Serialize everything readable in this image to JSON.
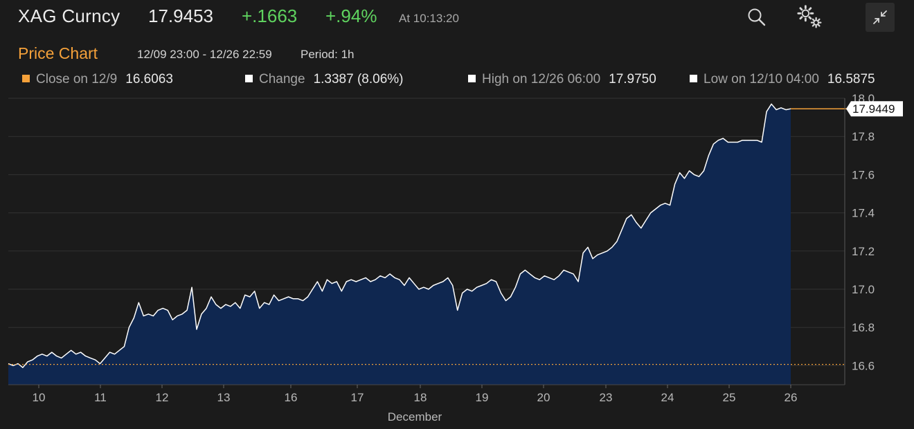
{
  "header": {
    "ticker": "XAG Curncy",
    "price": "17.9453",
    "change": "+.1663",
    "change_pct": "+.94%",
    "time": "At 10:13:20"
  },
  "subheader": {
    "title": "Price Chart",
    "range": "12/09 23:00 - 12/26 22:59",
    "period": "Period: 1h"
  },
  "stats": {
    "close": {
      "label": "Close on 12/9",
      "value": "16.6063"
    },
    "change": {
      "label": "Change",
      "value": "1.3387 (8.06%)"
    },
    "high": {
      "label": "High on 12/26 06:00",
      "value": "17.9750"
    },
    "low": {
      "label": "Low on 12/10 04:00",
      "value": "16.5875"
    }
  },
  "icons": {
    "search": "search-icon",
    "settings": "gear-icon",
    "collapse": "collapse-icon"
  },
  "colors": {
    "background": "#1b1b1b",
    "accent": "#f5a13a",
    "positive": "#5fd35f",
    "area_fill": "#0f2750",
    "line": "#ffffff"
  },
  "chart_data": {
    "type": "area",
    "xlabel": "December",
    "ylabel": "",
    "ylim": [
      16.5,
      18.0
    ],
    "yticks": [
      "16.6",
      "16.8",
      "17.0",
      "17.2",
      "17.4",
      "17.6",
      "17.8",
      "18.0"
    ],
    "xticks": [
      "10",
      "11",
      "12",
      "13",
      "16",
      "17",
      "18",
      "19",
      "20",
      "23",
      "24",
      "25",
      "26"
    ],
    "reference_line": {
      "value": 16.6063,
      "style": "dotted"
    },
    "last_value": {
      "value": 17.9449,
      "label": "17.9449"
    },
    "grid": true,
    "series": [
      {
        "values": [
          16.61,
          16.6,
          16.61,
          16.59,
          16.62,
          16.63,
          16.65,
          16.66,
          16.65,
          16.67,
          16.65,
          16.64,
          16.66,
          16.68,
          16.66,
          16.67,
          16.65,
          16.64,
          16.63,
          16.61,
          16.64,
          16.67,
          16.66,
          16.68,
          16.7,
          16.8,
          16.85,
          16.93,
          16.86,
          16.87,
          16.86,
          16.89,
          16.9,
          16.89,
          16.84,
          16.86,
          16.87,
          16.89,
          17.01,
          16.79,
          16.87,
          16.9,
          16.96,
          16.92,
          16.9,
          16.92,
          16.91,
          16.93,
          16.9,
          16.97,
          16.96,
          16.99,
          16.9,
          16.93,
          16.92,
          16.97,
          16.94,
          16.95,
          16.96,
          16.95,
          16.95,
          16.94,
          16.96,
          17.0,
          17.04,
          16.99,
          17.05,
          17.03,
          17.04,
          16.99,
          17.04,
          17.05,
          17.04,
          17.05,
          17.06,
          17.04,
          17.05,
          17.07,
          17.06,
          17.08,
          17.06,
          17.05,
          17.02,
          17.06,
          17.03,
          17.0,
          17.01,
          17.0,
          17.02,
          17.03,
          17.04,
          17.06,
          17.02,
          16.89,
          16.98,
          17.0,
          16.99,
          17.01,
          17.02,
          17.03,
          17.05,
          17.04,
          16.98,
          16.94,
          16.96,
          17.01,
          17.08,
          17.1,
          17.08,
          17.06,
          17.05,
          17.07,
          17.06,
          17.05,
          17.07,
          17.1,
          17.09,
          17.08,
          17.04,
          17.19,
          17.22,
          17.16,
          17.18,
          17.19,
          17.2,
          17.22,
          17.25,
          17.31,
          17.37,
          17.39,
          17.35,
          17.32,
          17.36,
          17.4,
          17.42,
          17.44,
          17.45,
          17.44,
          17.55,
          17.61,
          17.58,
          17.62,
          17.6,
          17.59,
          17.62,
          17.7,
          17.76,
          17.78,
          17.79,
          17.77,
          17.77,
          17.77,
          17.78,
          17.78,
          17.78,
          17.78,
          17.77,
          17.93,
          17.97,
          17.94,
          17.95,
          17.94,
          17.945
        ]
      }
    ]
  }
}
